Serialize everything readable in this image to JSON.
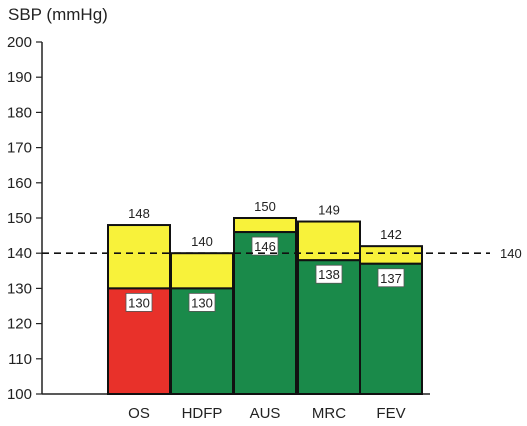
{
  "chart_data": {
    "type": "bar",
    "title": "",
    "ylabel": "SBP (mmHg)",
    "xlabel": "",
    "ylim": [
      100,
      200
    ],
    "yticks": [
      100,
      110,
      120,
      130,
      140,
      150,
      160,
      170,
      180,
      190,
      200
    ],
    "grid": false,
    "categories": [
      "OS",
      "HDFP",
      "AUS",
      "MRC",
      "FEV"
    ],
    "base_values": [
      130,
      130,
      146,
      138,
      137
    ],
    "top_values": [
      148,
      140,
      150,
      149,
      142
    ],
    "base_colors": [
      "#e8312a",
      "#1a8a4a",
      "#1a8a4a",
      "#1a8a4a",
      "#1a8a4a"
    ],
    "top_color": "#f8f23a",
    "reference_line": {
      "value": 140,
      "label": "140",
      "style": "dashed"
    }
  }
}
